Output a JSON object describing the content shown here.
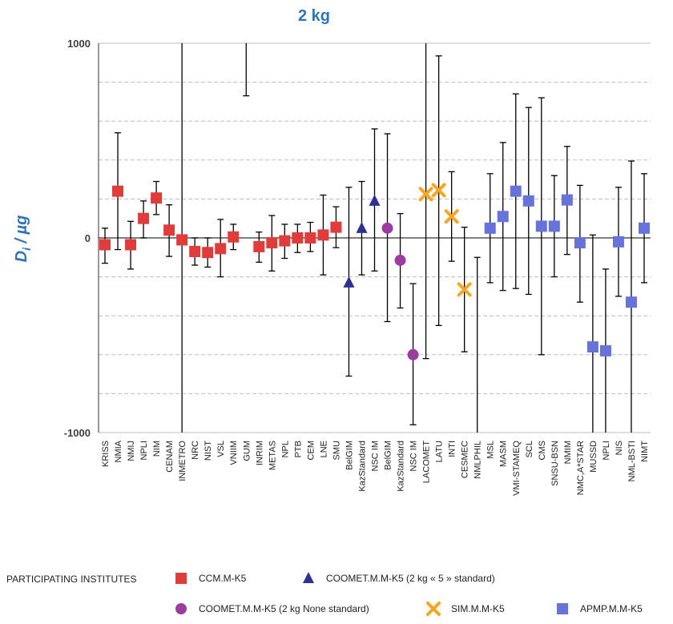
{
  "chart_data": {
    "type": "scatter",
    "title": "2 kg",
    "ylabel_main": "D",
    "ylabel_sub": "i",
    "ylabel_unit": " / µg",
    "ylim": [
      -1000,
      1000
    ],
    "yticks": [
      1000,
      0,
      -1000
    ],
    "grid": true,
    "legend_position": "bottom",
    "legend_title": "PARTICIPATING INSTITUTES",
    "series": [
      {
        "name": "CCM.M-K5",
        "marker": "square",
        "color": "#e03c3c"
      },
      {
        "name": "COOMET.M.M-K5 (2 kg « 5 » standard)",
        "marker": "triangle",
        "color": "#2e3192"
      },
      {
        "name": "COOMET.M.M-K5 (2 kg None standard)",
        "marker": "circle",
        "color": "#9b3ca0"
      },
      {
        "name": "SIM.M.M-K5",
        "marker": "x",
        "color": "#f5a623"
      },
      {
        "name": "APMP.M.M-K5",
        "marker": "square",
        "color": "#6674d9"
      }
    ],
    "points": [
      {
        "label": "KRISS",
        "series": 0,
        "y": -35,
        "lo": -130,
        "hi": 50
      },
      {
        "label": "NMIA",
        "series": 0,
        "y": 240,
        "lo": -60,
        "hi": 540
      },
      {
        "label": "NMIJ",
        "series": 0,
        "y": -35,
        "lo": -160,
        "hi": 85
      },
      {
        "label": "NPLI",
        "series": 0,
        "y": 100,
        "lo": 0,
        "hi": 190
      },
      {
        "label": "NIM",
        "series": 0,
        "y": 205,
        "lo": 120,
        "hi": 290
      },
      {
        "label": "CENAM",
        "series": 0,
        "y": 40,
        "lo": -95,
        "hi": 170
      },
      {
        "label": "INMETRO",
        "series": 0,
        "y": -10,
        "lo": -1000,
        "hi": 1000
      },
      {
        "label": "NRC",
        "series": 0,
        "y": -70,
        "lo": -140,
        "hi": 0
      },
      {
        "label": "NIST",
        "series": 0,
        "y": -75,
        "lo": -150,
        "hi": 0
      },
      {
        "label": "VSL",
        "series": 0,
        "y": -55,
        "lo": -200,
        "hi": 95
      },
      {
        "label": "VNIIM",
        "series": 0,
        "y": 5,
        "lo": -60,
        "hi": 70
      },
      {
        "label": "GUM",
        "series": 0,
        "y": null,
        "lo": 730,
        "hi": 1000
      },
      {
        "label": "INRIM",
        "series": 0,
        "y": -45,
        "lo": -125,
        "hi": 30
      },
      {
        "label": "METAS",
        "series": 0,
        "y": -25,
        "lo": -170,
        "hi": 115
      },
      {
        "label": "NPL",
        "series": 0,
        "y": -15,
        "lo": -105,
        "hi": 70
      },
      {
        "label": "PTB",
        "series": 0,
        "y": 0,
        "lo": -75,
        "hi": 70
      },
      {
        "label": "CEM",
        "series": 0,
        "y": 0,
        "lo": -70,
        "hi": 80
      },
      {
        "label": "LNE",
        "series": 0,
        "y": 15,
        "lo": -190,
        "hi": 220
      },
      {
        "label": "SMU",
        "series": 0,
        "y": 55,
        "lo": -50,
        "hi": 160
      },
      {
        "label": "BelGIM",
        "series": 1,
        "y": -230,
        "lo": -710,
        "hi": 260
      },
      {
        "label": "KazStandard",
        "series": 1,
        "y": 50,
        "lo": -190,
        "hi": 290
      },
      {
        "label": "NSC IM",
        "series": 1,
        "y": 190,
        "lo": -170,
        "hi": 560
      },
      {
        "label": "BelGIM",
        "series": 2,
        "y": 50,
        "lo": -430,
        "hi": 535
      },
      {
        "label": "KazStandard",
        "series": 2,
        "y": -115,
        "lo": -360,
        "hi": 125
      },
      {
        "label": "NSC IM",
        "series": 2,
        "y": -600,
        "lo": -960,
        "hi": -235
      },
      {
        "label": "LACOMET",
        "series": 3,
        "y": 225,
        "lo": -620,
        "hi": 1000
      },
      {
        "label": "LATU",
        "series": 3,
        "y": 245,
        "lo": -450,
        "hi": 935
      },
      {
        "label": "INTI",
        "series": 3,
        "y": 110,
        "lo": -120,
        "hi": 340
      },
      {
        "label": "CESMEC",
        "series": 3,
        "y": -265,
        "lo": -585,
        "hi": 55
      },
      {
        "label": "NMLPHIL",
        "series": 4,
        "y": null,
        "lo": -1000,
        "hi": -100
      },
      {
        "label": "MSL",
        "series": 4,
        "y": 50,
        "lo": -230,
        "hi": 330
      },
      {
        "label": "MASM",
        "series": 4,
        "y": 110,
        "lo": -270,
        "hi": 490
      },
      {
        "label": "VMI-STAMEQ",
        "series": 4,
        "y": 240,
        "lo": -260,
        "hi": 740
      },
      {
        "label": "SCL",
        "series": 4,
        "y": 190,
        "lo": -290,
        "hi": 670
      },
      {
        "label": "CMS",
        "series": 4,
        "y": 60,
        "lo": -600,
        "hi": 720
      },
      {
        "label": "SNSU-BSN",
        "series": 4,
        "y": 60,
        "lo": -200,
        "hi": 320
      },
      {
        "label": "NMIM",
        "series": 4,
        "y": 195,
        "lo": -85,
        "hi": 470
      },
      {
        "label": "NMC,A*STAR",
        "series": 4,
        "y": -25,
        "lo": -330,
        "hi": 270
      },
      {
        "label": "MUSSD",
        "series": 4,
        "y": -560,
        "lo": -1000,
        "hi": 15
      },
      {
        "label": "NPLI",
        "series": 4,
        "y": -580,
        "lo": -1000,
        "hi": -160
      },
      {
        "label": "NIS",
        "series": 4,
        "y": -20,
        "lo": -300,
        "hi": 260
      },
      {
        "label": "NML-BSTI",
        "series": 4,
        "y": -330,
        "lo": -1000,
        "hi": 395
      },
      {
        "label": "NIMT",
        "series": 4,
        "y": 50,
        "lo": -230,
        "hi": 330
      }
    ]
  }
}
